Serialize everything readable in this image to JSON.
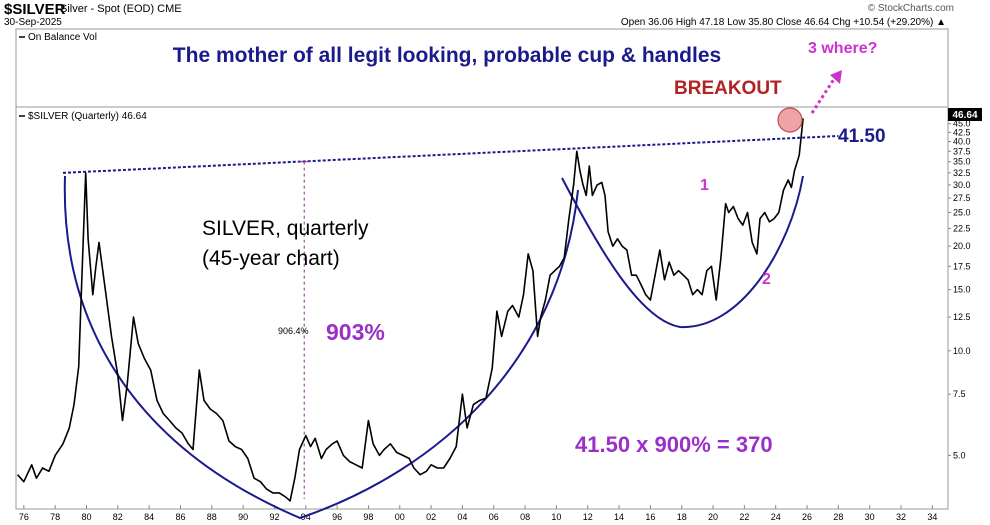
{
  "header": {
    "symbol": "$SILVER",
    "description": "Silver - Spot (EOD) CME",
    "date": "30-Sep-2025",
    "ohlc": "Open 36.06  High 47.18  Low 35.80  Close 46.64  Chg +10.54 (+29.20%) ▲",
    "brand": "© StockCharts.com"
  },
  "panels": {
    "volume_label": "On Balance Vol",
    "price_label": "$SILVER (Quarterly) 46.64",
    "last_value_badge": "46.64"
  },
  "annotations": {
    "headline": "The mother of all legit looking, probable cup & handles",
    "breakout": "BREAKOUT",
    "where": "3 where?",
    "level": "41.50",
    "chart_title_line1": "SILVER, quarterly",
    "chart_title_line2": "(45-year chart)",
    "pct_small": "906.4%",
    "pct_big": "903%",
    "formula": "41.50 x 900% = 370",
    "label_1": "1",
    "label_2": "2"
  },
  "colors": {
    "price_line": "#000000",
    "cup_curve": "#1a1a8c",
    "resistance": "#1a1a8c",
    "headline": "#1a1a8c",
    "breakout": "#b22222",
    "magenta": "#cc33cc",
    "purple": "#9b30c8"
  },
  "chart_data": {
    "type": "line",
    "scale": "log",
    "ylim": [
      3.6,
      48
    ],
    "xlim": [
      1975.5,
      2035
    ],
    "y_ticks": [
      5.0,
      7.5,
      10.0,
      12.5,
      15.0,
      17.5,
      20.0,
      22.5,
      25.0,
      27.5,
      30.0,
      32.5,
      35.0,
      37.5,
      40.0,
      42.5,
      45.0
    ],
    "x_ticks": [
      {
        "year": 1976,
        "label": "76"
      },
      {
        "year": 1978,
        "label": "78"
      },
      {
        "year": 1980,
        "label": "80"
      },
      {
        "year": 1982,
        "label": "82"
      },
      {
        "year": 1984,
        "label": "84"
      },
      {
        "year": 1986,
        "label": "86"
      },
      {
        "year": 1988,
        "label": "88"
      },
      {
        "year": 1990,
        "label": "90"
      },
      {
        "year": 1992,
        "label": "92"
      },
      {
        "year": 1994,
        "label": "94"
      },
      {
        "year": 1996,
        "label": "96"
      },
      {
        "year": 1998,
        "label": "98"
      },
      {
        "year": 2000,
        "label": "00"
      },
      {
        "year": 2002,
        "label": "02"
      },
      {
        "year": 2004,
        "label": "04"
      },
      {
        "year": 2006,
        "label": "06"
      },
      {
        "year": 2008,
        "label": "08"
      },
      {
        "year": 2010,
        "label": "10"
      },
      {
        "year": 2012,
        "label": "12"
      },
      {
        "year": 2014,
        "label": "14"
      },
      {
        "year": 2016,
        "label": "16"
      },
      {
        "year": 2018,
        "label": "18"
      },
      {
        "year": 2020,
        "label": "20"
      },
      {
        "year": 2022,
        "label": "22"
      },
      {
        "year": 2024,
        "label": "24"
      },
      {
        "year": 2026,
        "label": "26"
      },
      {
        "year": 2028,
        "label": "28"
      },
      {
        "year": 2030,
        "label": "30"
      },
      {
        "year": 2032,
        "label": "32"
      },
      {
        "year": 2034,
        "label": "34"
      }
    ],
    "series": [
      {
        "points": [
          [
            1975.6,
            4.4
          ],
          [
            1976.0,
            4.2
          ],
          [
            1976.5,
            4.7
          ],
          [
            1976.8,
            4.3
          ],
          [
            1977.2,
            4.6
          ],
          [
            1977.6,
            4.5
          ],
          [
            1978.0,
            5.0
          ],
          [
            1978.5,
            5.4
          ],
          [
            1978.9,
            6.0
          ],
          [
            1979.2,
            7.0
          ],
          [
            1979.5,
            9.0
          ],
          [
            1979.7,
            16.0
          ],
          [
            1979.95,
            32.5
          ],
          [
            1980.1,
            21.0
          ],
          [
            1980.4,
            14.5
          ],
          [
            1980.6,
            17.5
          ],
          [
            1980.8,
            20.5
          ],
          [
            1981.2,
            15.0
          ],
          [
            1981.6,
            11.0
          ],
          [
            1982.0,
            8.5
          ],
          [
            1982.3,
            6.3
          ],
          [
            1982.6,
            8.0
          ],
          [
            1983.0,
            12.5
          ],
          [
            1983.3,
            10.5
          ],
          [
            1983.7,
            9.5
          ],
          [
            1984.1,
            8.8
          ],
          [
            1984.5,
            7.2
          ],
          [
            1984.9,
            6.6
          ],
          [
            1985.3,
            6.3
          ],
          [
            1985.7,
            6.0
          ],
          [
            1986.1,
            5.8
          ],
          [
            1986.5,
            5.4
          ],
          [
            1986.8,
            5.2
          ],
          [
            1987.2,
            8.8
          ],
          [
            1987.5,
            7.2
          ],
          [
            1987.9,
            6.8
          ],
          [
            1988.3,
            6.6
          ],
          [
            1988.7,
            6.3
          ],
          [
            1989.1,
            5.5
          ],
          [
            1989.5,
            5.3
          ],
          [
            1989.9,
            5.2
          ],
          [
            1990.3,
            4.9
          ],
          [
            1990.7,
            4.3
          ],
          [
            1991.1,
            4.2
          ],
          [
            1991.5,
            4.0
          ],
          [
            1991.9,
            3.9
          ],
          [
            1992.3,
            3.9
          ],
          [
            1992.7,
            3.8
          ],
          [
            1993.0,
            3.7
          ],
          [
            1993.3,
            4.3
          ],
          [
            1993.6,
            5.2
          ],
          [
            1994.0,
            5.7
          ],
          [
            1994.3,
            5.3
          ],
          [
            1994.6,
            5.6
          ],
          [
            1995.0,
            4.9
          ],
          [
            1995.3,
            5.2
          ],
          [
            1995.7,
            5.4
          ],
          [
            1996.0,
            5.5
          ],
          [
            1996.4,
            5.0
          ],
          [
            1996.8,
            4.8
          ],
          [
            1997.2,
            4.7
          ],
          [
            1997.6,
            4.6
          ],
          [
            1998.0,
            6.3
          ],
          [
            1998.3,
            5.4
          ],
          [
            1998.7,
            5.0
          ],
          [
            1999.0,
            5.2
          ],
          [
            1999.4,
            5.4
          ],
          [
            1999.8,
            5.1
          ],
          [
            2000.2,
            5.0
          ],
          [
            2000.6,
            4.9
          ],
          [
            2000.9,
            4.6
          ],
          [
            2001.3,
            4.4
          ],
          [
            2001.7,
            4.5
          ],
          [
            2002.0,
            4.7
          ],
          [
            2002.4,
            4.6
          ],
          [
            2002.8,
            4.6
          ],
          [
            2003.2,
            4.9
          ],
          [
            2003.6,
            5.3
          ],
          [
            2004.0,
            7.5
          ],
          [
            2004.3,
            6.0
          ],
          [
            2004.7,
            7.0
          ],
          [
            2005.1,
            7.2
          ],
          [
            2005.5,
            7.3
          ],
          [
            2005.9,
            8.9
          ],
          [
            2006.2,
            13.0
          ],
          [
            2006.5,
            11.0
          ],
          [
            2006.9,
            13.0
          ],
          [
            2007.2,
            13.5
          ],
          [
            2007.6,
            12.5
          ],
          [
            2007.9,
            14.5
          ],
          [
            2008.2,
            19.0
          ],
          [
            2008.5,
            17.0
          ],
          [
            2008.8,
            11.0
          ],
          [
            2009.0,
            12.5
          ],
          [
            2009.3,
            14.0
          ],
          [
            2009.6,
            16.5
          ],
          [
            2009.9,
            17.0
          ],
          [
            2010.2,
            17.5
          ],
          [
            2010.5,
            18.5
          ],
          [
            2010.8,
            24.0
          ],
          [
            2011.1,
            30.0
          ],
          [
            2011.3,
            37.5
          ],
          [
            2011.5,
            33.0
          ],
          [
            2011.7,
            30.0
          ],
          [
            2011.9,
            28.0
          ],
          [
            2012.1,
            34.0
          ],
          [
            2012.3,
            28.0
          ],
          [
            2012.6,
            30.0
          ],
          [
            2012.9,
            30.5
          ],
          [
            2013.1,
            28.0
          ],
          [
            2013.3,
            22.0
          ],
          [
            2013.6,
            20.0
          ],
          [
            2013.9,
            21.0
          ],
          [
            2014.2,
            20.0
          ],
          [
            2014.5,
            19.5
          ],
          [
            2014.8,
            16.5
          ],
          [
            2015.1,
            16.5
          ],
          [
            2015.4,
            15.5
          ],
          [
            2015.7,
            14.5
          ],
          [
            2016.0,
            14.0
          ],
          [
            2016.3,
            16.5
          ],
          [
            2016.6,
            19.5
          ],
          [
            2016.9,
            16.0
          ],
          [
            2017.2,
            18.0
          ],
          [
            2017.5,
            16.5
          ],
          [
            2017.8,
            17.0
          ],
          [
            2018.1,
            16.5
          ],
          [
            2018.4,
            16.0
          ],
          [
            2018.7,
            14.5
          ],
          [
            2019.0,
            15.0
          ],
          [
            2019.3,
            14.5
          ],
          [
            2019.6,
            17.0
          ],
          [
            2019.9,
            17.5
          ],
          [
            2020.2,
            14.0
          ],
          [
            2020.5,
            18.5
          ],
          [
            2020.8,
            26.5
          ],
          [
            2021.0,
            25.0
          ],
          [
            2021.3,
            26.0
          ],
          [
            2021.6,
            24.0
          ],
          [
            2021.9,
            23.0
          ],
          [
            2022.2,
            25.0
          ],
          [
            2022.5,
            20.5
          ],
          [
            2022.8,
            19.0
          ],
          [
            2023.0,
            24.0
          ],
          [
            2023.3,
            25.0
          ],
          [
            2023.6,
            23.5
          ],
          [
            2023.9,
            24.0
          ],
          [
            2024.2,
            25.0
          ],
          [
            2024.5,
            29.0
          ],
          [
            2024.8,
            31.0
          ],
          [
            2025.0,
            29.5
          ],
          [
            2025.2,
            33.0
          ],
          [
            2025.5,
            36.5
          ],
          [
            2025.75,
            46.64
          ]
        ]
      }
    ],
    "reference_lines": {
      "resistance": {
        "x": [
          1978.5,
          2028.0
        ],
        "y": [
          32.5,
          41.5
        ]
      },
      "cup_pct_marker_year": 1993.9
    }
  }
}
